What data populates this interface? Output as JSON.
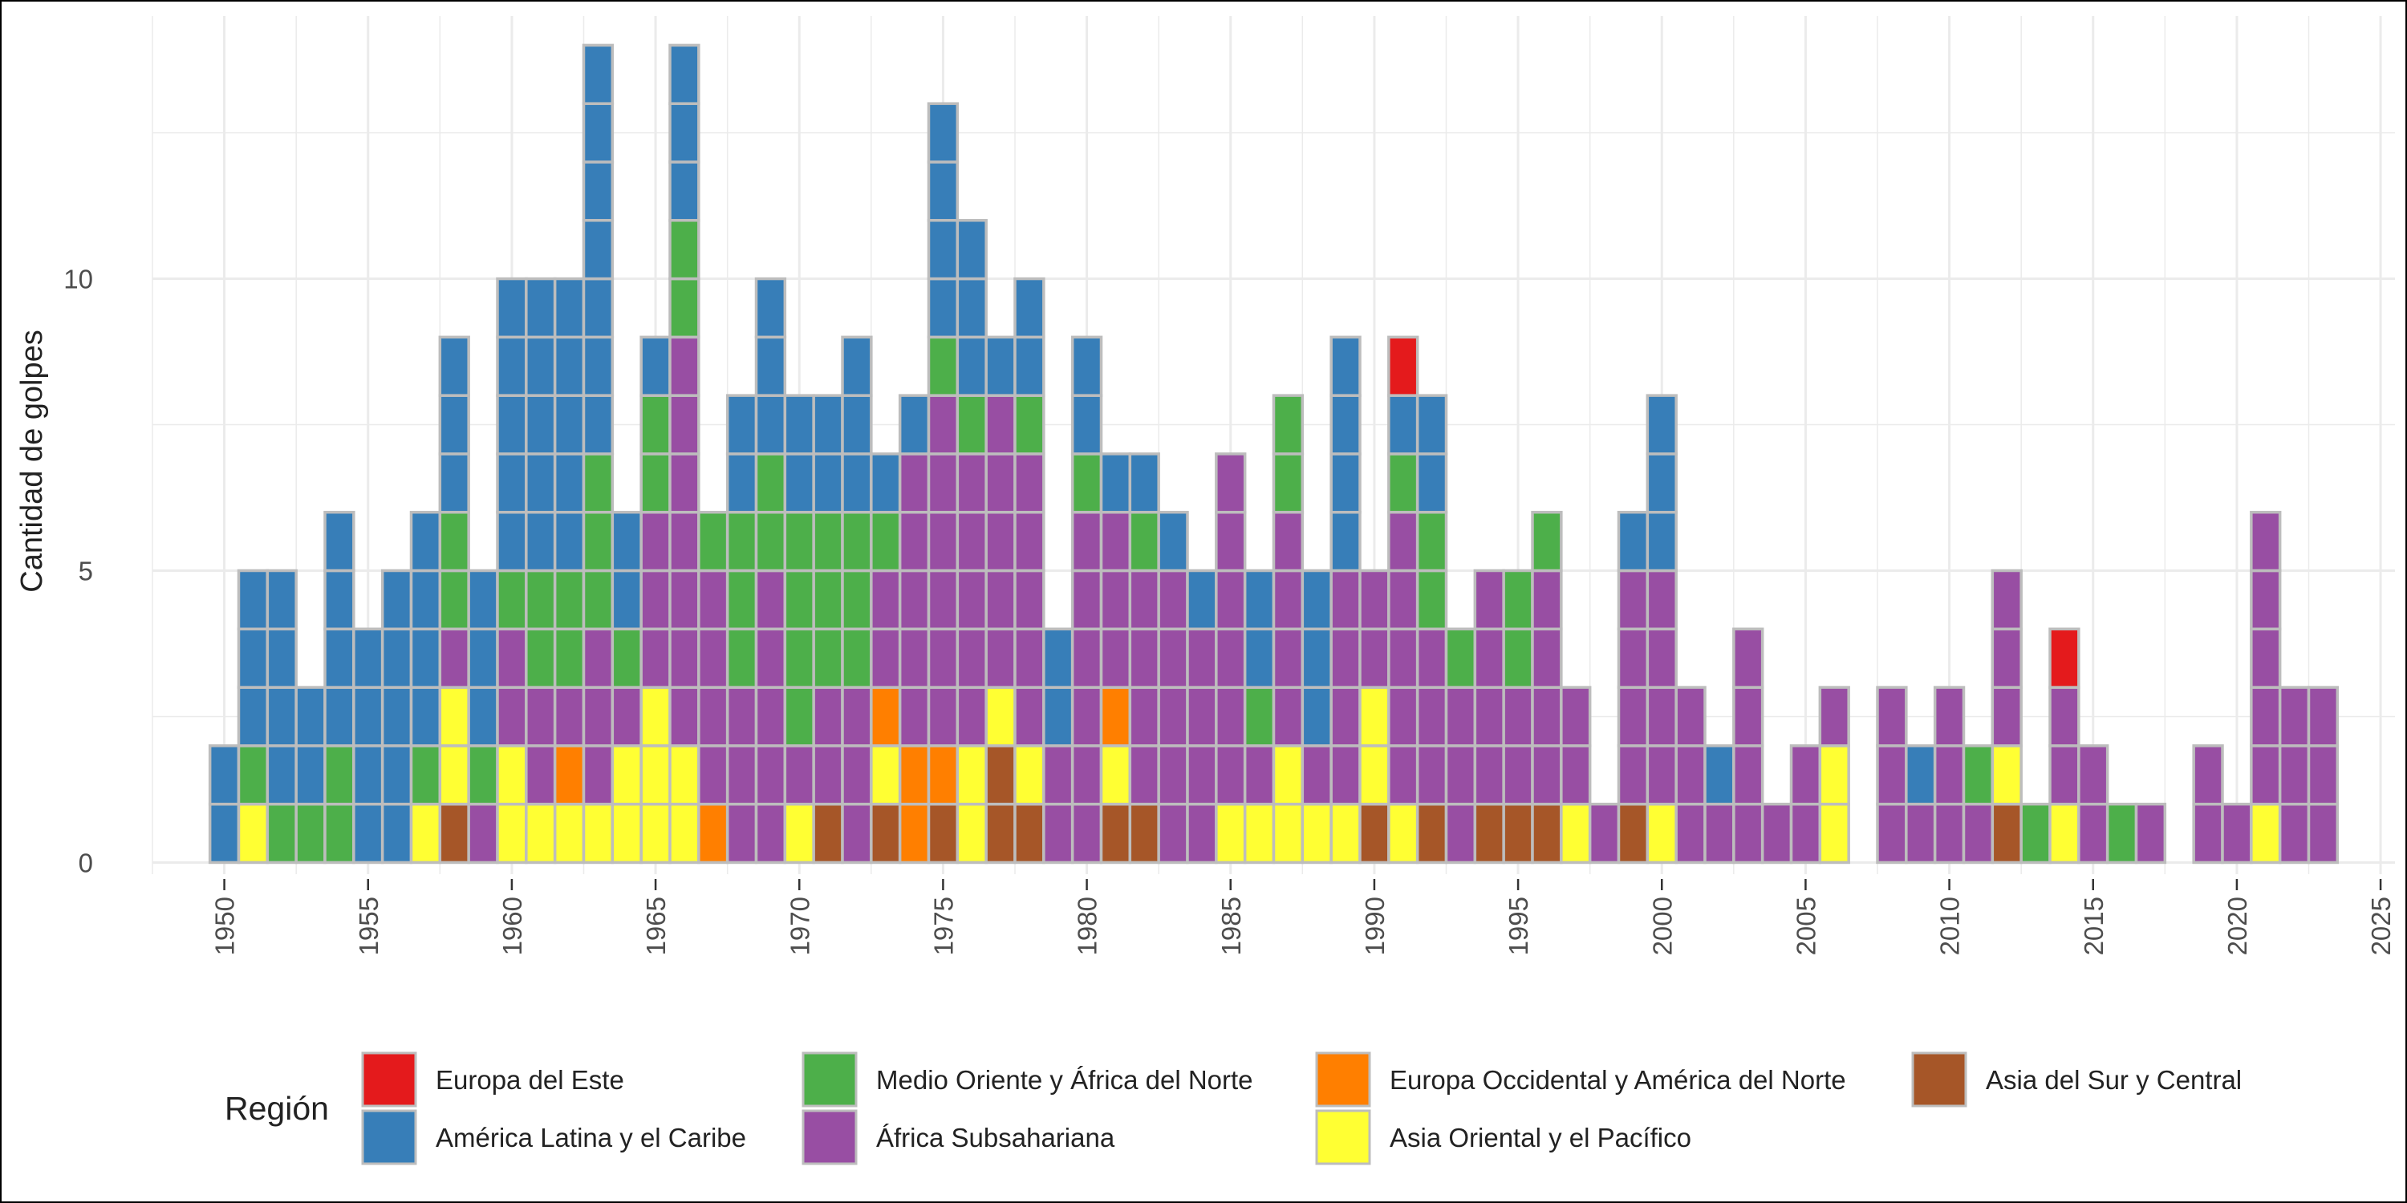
{
  "chart_data": {
    "type": "bar",
    "stacked": true,
    "unit": "one tile per coup",
    "title": "",
    "xlabel": "",
    "ylabel": "Cantidad de golpes",
    "xlim": [
      1947.5,
      2025.5
    ],
    "ylim": [
      -0.2,
      14.5
    ],
    "x_ticks": [
      1950,
      1955,
      1960,
      1965,
      1970,
      1975,
      1980,
      1985,
      1990,
      1995,
      2000,
      2005,
      2010,
      2015,
      2020,
      2025
    ],
    "y_ticks": [
      0,
      5,
      10
    ],
    "grid": true,
    "legend": {
      "title": "Región",
      "placement": "bottom",
      "entries": [
        {
          "key": "EE",
          "label": "Europa del Este",
          "color": "#e41a1c"
        },
        {
          "key": "LA",
          "label": "América Latina y el Caribe",
          "color": "#377eb8"
        },
        {
          "key": "ME",
          "label": "Medio Oriente y África del Norte",
          "color": "#4daf4a"
        },
        {
          "key": "AF",
          "label": "África Subsahariana",
          "color": "#984ea3"
        },
        {
          "key": "WE",
          "label": "Europa Occidental y América del Norte",
          "color": "#ff7f00"
        },
        {
          "key": "EA",
          "label": "Asia Oriental y el Pacífico",
          "color": "#ffff33"
        },
        {
          "key": "SA",
          "label": "Asia del Sur y Central",
          "color": "#a65628"
        }
      ]
    },
    "stack_order_bottom_to_top": [
      "SA",
      "EA",
      "WE",
      "AF",
      "ME",
      "LA",
      "EE"
    ],
    "years": [
      {
        "year": 1950,
        "LA": 2
      },
      {
        "year": 1951,
        "EA": 1,
        "ME": 1,
        "LA": 3
      },
      {
        "year": 1952,
        "ME": 1,
        "LA": 4
      },
      {
        "year": 1953,
        "ME": 1,
        "LA": 2
      },
      {
        "year": 1954,
        "ME": 2,
        "LA": 4
      },
      {
        "year": 1955,
        "LA": 4
      },
      {
        "year": 1956,
        "LA": 5
      },
      {
        "year": 1957,
        "EA": 1,
        "ME": 1,
        "LA": 4
      },
      {
        "year": 1958,
        "SA": 1,
        "EA": 2,
        "AF": 1,
        "ME": 2,
        "LA": 3
      },
      {
        "year": 1959,
        "AF": 1,
        "ME": 1,
        "LA": 3
      },
      {
        "year": 1960,
        "EA": 2,
        "AF": 2,
        "ME": 1,
        "LA": 5
      },
      {
        "year": 1961,
        "EA": 1,
        "AF": 2,
        "ME": 2,
        "LA": 5
      },
      {
        "year": 1962,
        "EA": 1,
        "WE": 1,
        "AF": 1,
        "ME": 2,
        "LA": 5
      },
      {
        "year": 1963,
        "EA": 1,
        "AF": 3,
        "ME": 3,
        "LA": 7
      },
      {
        "year": 1964,
        "EA": 2,
        "AF": 1,
        "ME": 1,
        "LA": 2
      },
      {
        "year": 1965,
        "EA": 3,
        "AF": 3,
        "ME": 2,
        "LA": 1
      },
      {
        "year": 1966,
        "EA": 2,
        "AF": 7,
        "ME": 2,
        "LA": 3
      },
      {
        "year": 1967,
        "WE": 1,
        "AF": 4,
        "ME": 1
      },
      {
        "year": 1968,
        "AF": 3,
        "ME": 3,
        "LA": 2
      },
      {
        "year": 1969,
        "AF": 5,
        "ME": 2,
        "LA": 3
      },
      {
        "year": 1970,
        "EA": 1,
        "AF": 1,
        "ME": 4,
        "LA": 2
      },
      {
        "year": 1971,
        "SA": 1,
        "AF": 2,
        "ME": 3,
        "LA": 2
      },
      {
        "year": 1972,
        "AF": 3,
        "ME": 3,
        "LA": 3
      },
      {
        "year": 1973,
        "SA": 1,
        "EA": 1,
        "WE": 1,
        "AF": 2,
        "ME": 1,
        "LA": 1
      },
      {
        "year": 1974,
        "WE": 2,
        "AF": 5,
        "LA": 1
      },
      {
        "year": 1975,
        "SA": 1,
        "WE": 1,
        "AF": 6,
        "ME": 1,
        "LA": 4
      },
      {
        "year": 1976,
        "EA": 2,
        "AF": 5,
        "ME": 1,
        "LA": 3
      },
      {
        "year": 1977,
        "SA": 2,
        "EA": 1,
        "AF": 5,
        "LA": 1
      },
      {
        "year": 1978,
        "SA": 1,
        "EA": 1,
        "AF": 5,
        "ME": 1,
        "LA": 2
      },
      {
        "year": 1979,
        "AF": 2,
        "LA": 2
      },
      {
        "year": 1980,
        "AF": 6,
        "ME": 1,
        "LA": 2
      },
      {
        "year": 1981,
        "SA": 1,
        "EA": 1,
        "WE": 1,
        "AF": 3,
        "LA": 1
      },
      {
        "year": 1982,
        "SA": 1,
        "AF": 4,
        "ME": 1,
        "LA": 1
      },
      {
        "year": 1983,
        "AF": 5,
        "LA": 1
      },
      {
        "year": 1984,
        "AF": 4,
        "LA": 1
      },
      {
        "year": 1985,
        "EA": 1,
        "AF": 6
      },
      {
        "year": 1986,
        "EA": 1,
        "AF": 1,
        "ME": 1,
        "LA": 2
      },
      {
        "year": 1987,
        "EA": 2,
        "AF": 4,
        "ME": 2
      },
      {
        "year": 1988,
        "EA": 1,
        "AF": 1,
        "LA": 3
      },
      {
        "year": 1989,
        "EA": 1,
        "AF": 4,
        "LA": 4
      },
      {
        "year": 1990,
        "SA": 1,
        "EA": 2,
        "AF": 2
      },
      {
        "year": 1991,
        "EA": 1,
        "AF": 5,
        "ME": 1,
        "LA": 1,
        "EE": 1
      },
      {
        "year": 1992,
        "SA": 1,
        "AF": 3,
        "ME": 2,
        "LA": 2
      },
      {
        "year": 1993,
        "AF": 3,
        "ME": 1
      },
      {
        "year": 1994,
        "SA": 1,
        "AF": 4
      },
      {
        "year": 1995,
        "SA": 1,
        "AF": 2,
        "ME": 2
      },
      {
        "year": 1996,
        "SA": 1,
        "AF": 4,
        "ME": 1
      },
      {
        "year": 1997,
        "EA": 1,
        "AF": 2
      },
      {
        "year": 1998,
        "AF": 1
      },
      {
        "year": 1999,
        "SA": 1,
        "AF": 4,
        "LA": 1
      },
      {
        "year": 2000,
        "EA": 1,
        "AF": 4,
        "LA": 3
      },
      {
        "year": 2001,
        "AF": 3
      },
      {
        "year": 2002,
        "AF": 1,
        "LA": 1
      },
      {
        "year": 2003,
        "AF": 4
      },
      {
        "year": 2004,
        "AF": 1
      },
      {
        "year": 2005,
        "AF": 2
      },
      {
        "year": 2006,
        "EA": 2,
        "AF": 1
      },
      {
        "year": 2008,
        "AF": 3
      },
      {
        "year": 2009,
        "AF": 1,
        "LA": 1
      },
      {
        "year": 2010,
        "AF": 3
      },
      {
        "year": 2011,
        "AF": 1,
        "ME": 1
      },
      {
        "year": 2012,
        "SA": 1,
        "EA": 1,
        "AF": 3
      },
      {
        "year": 2013,
        "ME": 1
      },
      {
        "year": 2014,
        "EA": 1,
        "AF": 2,
        "EE": 1
      },
      {
        "year": 2015,
        "AF": 2
      },
      {
        "year": 2016,
        "ME": 1
      },
      {
        "year": 2017,
        "AF": 1
      },
      {
        "year": 2019,
        "AF": 2
      },
      {
        "year": 2020,
        "AF": 1
      },
      {
        "year": 2021,
        "EA": 1,
        "AF": 5
      },
      {
        "year": 2022,
        "AF": 3
      },
      {
        "year": 2023,
        "AF": 3
      }
    ]
  }
}
